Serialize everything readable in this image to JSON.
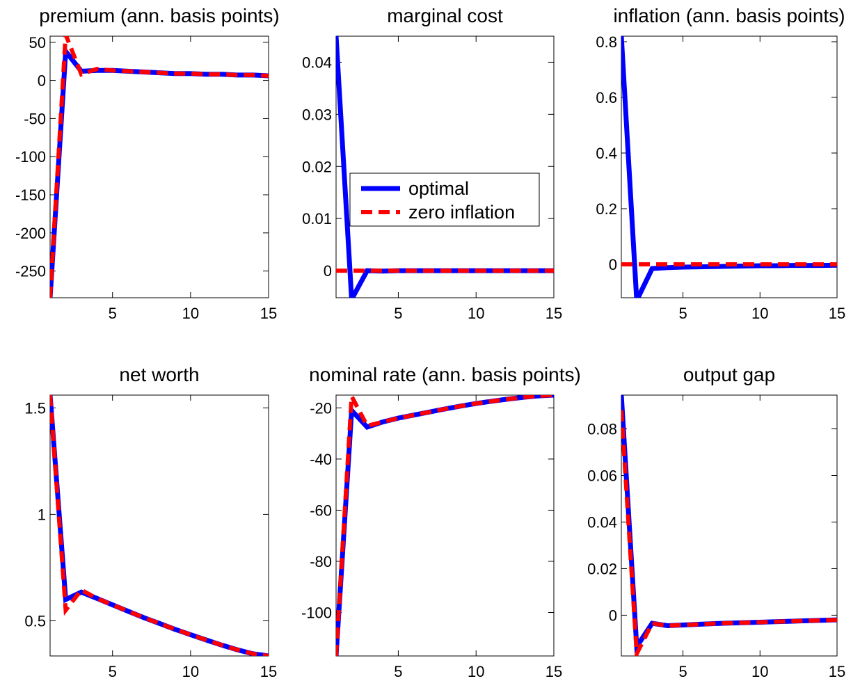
{
  "chart_data": [
    {
      "type": "line",
      "title": "premium (ann. basis points)",
      "xlim": [
        1,
        15
      ],
      "ylim": [
        -285,
        58
      ],
      "xticks": [
        5,
        10,
        15
      ],
      "yticks": [
        50,
        0,
        -50,
        -100,
        -150,
        -200,
        -250
      ],
      "series": [
        {
          "name": "optimal",
          "color": "#0000ff",
          "x": [
            1,
            2,
            3,
            4,
            5,
            6,
            7,
            8,
            9,
            10,
            11,
            12,
            13,
            14,
            15
          ],
          "y": [
            -285,
            38,
            12,
            13,
            13,
            12,
            11,
            10,
            9,
            9,
            8,
            8,
            7,
            7,
            6
          ]
        },
        {
          "name": "zero inflation",
          "color": "#ff0000",
          "x": [
            1,
            2,
            3,
            4,
            5,
            6,
            7,
            8,
            9,
            10,
            11,
            12,
            13,
            14,
            15
          ],
          "y": [
            -285,
            60,
            8,
            15,
            13,
            12,
            11,
            10,
            9,
            9,
            8,
            8,
            7,
            7,
            6
          ]
        }
      ]
    },
    {
      "type": "line",
      "title": "marginal cost",
      "xlim": [
        1,
        15
      ],
      "ylim": [
        -0.0052,
        0.045
      ],
      "xticks": [
        5,
        10,
        15
      ],
      "yticks": [
        0.04,
        0.03,
        0.02,
        0.01,
        0
      ],
      "legend": {
        "entries": [
          "optimal",
          "zero inflation"
        ],
        "placement": "center-left"
      },
      "series": [
        {
          "name": "optimal",
          "color": "#0000ff",
          "x": [
            1,
            2,
            3,
            4,
            5,
            6,
            7,
            8,
            9,
            10,
            11,
            12,
            13,
            14,
            15
          ],
          "y": [
            0.045,
            -0.0055,
            0,
            -0.0001,
            0,
            0,
            0,
            0,
            0,
            0,
            0,
            0,
            0,
            0,
            0
          ]
        },
        {
          "name": "zero inflation",
          "color": "#ff0000",
          "x": [
            1,
            2,
            3,
            4,
            5,
            6,
            7,
            8,
            9,
            10,
            11,
            12,
            13,
            14,
            15
          ],
          "y": [
            0,
            0,
            0,
            0,
            0,
            0,
            0,
            0,
            0,
            0,
            0,
            0,
            0,
            0,
            0
          ]
        }
      ]
    },
    {
      "type": "line",
      "title": "inflation (ann. basis points)",
      "xlim": [
        1,
        15
      ],
      "ylim": [
        -0.12,
        0.82
      ],
      "xticks": [
        5,
        10,
        15
      ],
      "yticks": [
        0.8,
        0.6,
        0.4,
        0.2,
        0
      ],
      "series": [
        {
          "name": "optimal",
          "color": "#0000ff",
          "x": [
            1,
            2,
            3,
            4,
            5,
            6,
            7,
            8,
            9,
            10,
            11,
            12,
            13,
            14,
            15
          ],
          "y": [
            0.82,
            -0.13,
            -0.015,
            -0.012,
            -0.01,
            -0.009,
            -0.008,
            -0.007,
            -0.006,
            -0.005,
            -0.005,
            -0.004,
            -0.004,
            -0.004,
            -0.003
          ]
        },
        {
          "name": "zero inflation",
          "color": "#ff0000",
          "x": [
            1,
            2,
            3,
            4,
            5,
            6,
            7,
            8,
            9,
            10,
            11,
            12,
            13,
            14,
            15
          ],
          "y": [
            0,
            0,
            0,
            0,
            0,
            0,
            0,
            0,
            0,
            0,
            0,
            0,
            0,
            0,
            0
          ]
        }
      ]
    },
    {
      "type": "line",
      "title": "net worth",
      "xlim": [
        1,
        15
      ],
      "ylim": [
        0.335,
        1.56
      ],
      "xticks": [
        5,
        10,
        15
      ],
      "yticks": [
        1.5,
        1,
        0.5
      ],
      "series": [
        {
          "name": "optimal",
          "color": "#0000ff",
          "x": [
            1,
            2,
            3,
            4,
            5,
            6,
            7,
            8,
            9,
            10,
            11,
            12,
            13,
            14,
            15
          ],
          "y": [
            1.56,
            0.6,
            0.635,
            0.605,
            0.575,
            0.545,
            0.515,
            0.488,
            0.46,
            0.435,
            0.41,
            0.386,
            0.364,
            0.345,
            0.335
          ]
        },
        {
          "name": "zero inflation",
          "color": "#ff0000",
          "x": [
            1,
            2,
            3,
            4,
            5,
            6,
            7,
            8,
            9,
            10,
            11,
            12,
            13,
            14,
            15
          ],
          "y": [
            1.56,
            0.55,
            0.645,
            0.605,
            0.575,
            0.545,
            0.515,
            0.488,
            0.46,
            0.435,
            0.41,
            0.386,
            0.364,
            0.345,
            0.335
          ]
        }
      ]
    },
    {
      "type": "line",
      "title": "nominal rate (ann. basis points)",
      "xlim": [
        1,
        15
      ],
      "ylim": [
        -117,
        -15
      ],
      "xticks": [
        5,
        10,
        15
      ],
      "yticks": [
        -20,
        -40,
        -60,
        -80,
        -100
      ],
      "series": [
        {
          "name": "optimal",
          "color": "#0000ff",
          "x": [
            1,
            2,
            3,
            4,
            5,
            6,
            7,
            8,
            9,
            10,
            11,
            12,
            13,
            14,
            15
          ],
          "y": [
            -117,
            -21,
            -27.5,
            -25.5,
            -24,
            -22.8,
            -21.6,
            -20.4,
            -19.3,
            -18.3,
            -17.4,
            -16.6,
            -15.9,
            -15.3,
            -15
          ]
        },
        {
          "name": "zero inflation",
          "color": "#ff0000",
          "x": [
            1,
            2,
            3,
            4,
            5,
            6,
            7,
            8,
            9,
            10,
            11,
            12,
            13,
            14,
            15
          ],
          "y": [
            -117,
            -15.5,
            -27,
            -25.5,
            -24,
            -22.8,
            -21.6,
            -20.4,
            -19.3,
            -18.3,
            -17.4,
            -16.6,
            -15.9,
            -15.3,
            -15
          ]
        }
      ]
    },
    {
      "type": "line",
      "title": "output gap",
      "xlim": [
        1,
        15
      ],
      "ylim": [
        -0.0175,
        0.0945
      ],
      "xticks": [
        5,
        10,
        15
      ],
      "yticks": [
        0.08,
        0.06,
        0.04,
        0.02,
        0
      ],
      "series": [
        {
          "name": "optimal",
          "color": "#0000ff",
          "x": [
            1,
            2,
            3,
            4,
            5,
            6,
            7,
            8,
            9,
            10,
            11,
            12,
            13,
            14,
            15
          ],
          "y": [
            0.0945,
            -0.0135,
            -0.0035,
            -0.0045,
            -0.0042,
            -0.0039,
            -0.0036,
            -0.0034,
            -0.0032,
            -0.003,
            -0.0028,
            -0.0026,
            -0.0024,
            -0.0022,
            -0.002
          ]
        },
        {
          "name": "zero inflation",
          "color": "#ff0000",
          "x": [
            1,
            2,
            3,
            4,
            5,
            6,
            7,
            8,
            9,
            10,
            11,
            12,
            13,
            14,
            15
          ],
          "y": [
            0.088,
            -0.0165,
            -0.0035,
            -0.0045,
            -0.0042,
            -0.0039,
            -0.0036,
            -0.0034,
            -0.0032,
            -0.003,
            -0.0028,
            -0.0026,
            -0.0024,
            -0.0022,
            -0.002
          ]
        }
      ]
    }
  ]
}
